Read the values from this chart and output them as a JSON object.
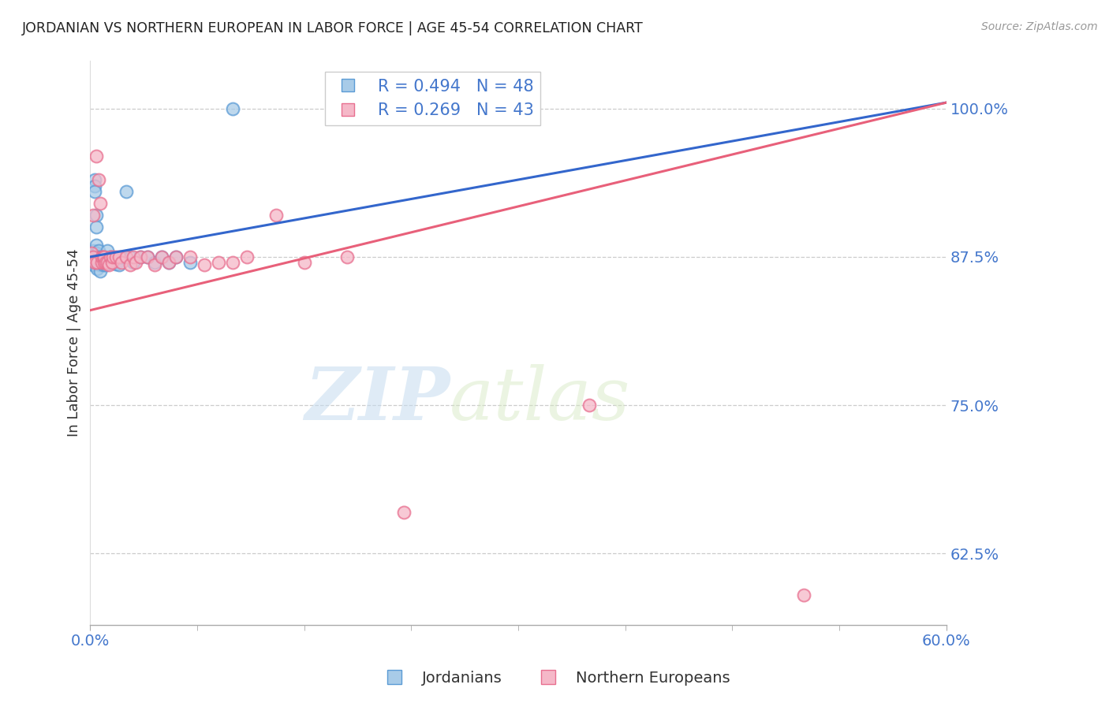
{
  "title": "JORDANIAN VS NORTHERN EUROPEAN IN LABOR FORCE | AGE 45-54 CORRELATION CHART",
  "source": "Source: ZipAtlas.com",
  "ylabel": "In Labor Force | Age 45-54",
  "xlim": [
    0.0,
    0.6
  ],
  "ylim": [
    0.565,
    1.04
  ],
  "yticks": [
    0.625,
    0.75,
    0.875,
    1.0
  ],
  "ytick_labels": [
    "62.5%",
    "75.0%",
    "87.5%",
    "100.0%"
  ],
  "xtick_left_label": "0.0%",
  "xtick_right_label": "60.0%",
  "blue_R": 0.494,
  "blue_N": 48,
  "pink_R": 0.269,
  "pink_N": 43,
  "blue_color": "#A8CBE8",
  "pink_color": "#F5B8C8",
  "blue_edge_color": "#5B9BD5",
  "pink_edge_color": "#E87090",
  "blue_line_color": "#3366CC",
  "pink_line_color": "#E8607A",
  "legend_label_blue": "Jordanians",
  "legend_label_pink": "Northern Europeans",
  "blue_scatter_x": [
    0.001,
    0.001,
    0.002,
    0.002,
    0.002,
    0.003,
    0.003,
    0.003,
    0.004,
    0.004,
    0.004,
    0.004,
    0.005,
    0.005,
    0.005,
    0.006,
    0.006,
    0.006,
    0.007,
    0.007,
    0.007,
    0.008,
    0.008,
    0.009,
    0.009,
    0.01,
    0.01,
    0.011,
    0.012,
    0.013,
    0.014,
    0.015,
    0.016,
    0.017,
    0.018,
    0.02,
    0.022,
    0.025,
    0.028,
    0.03,
    0.035,
    0.04,
    0.045,
    0.05,
    0.055,
    0.06,
    0.07,
    0.1
  ],
  "blue_scatter_y": [
    0.875,
    0.87,
    0.88,
    0.875,
    0.868,
    0.94,
    0.935,
    0.93,
    0.91,
    0.9,
    0.885,
    0.878,
    0.875,
    0.87,
    0.865,
    0.88,
    0.875,
    0.87,
    0.872,
    0.868,
    0.863,
    0.875,
    0.87,
    0.875,
    0.868,
    0.875,
    0.87,
    0.868,
    0.88,
    0.87,
    0.875,
    0.872,
    0.87,
    0.87,
    0.869,
    0.868,
    0.875,
    0.93,
    0.875,
    0.87,
    0.875,
    0.875,
    0.87,
    0.875,
    0.87,
    0.875,
    0.87,
    1.0
  ],
  "pink_scatter_x": [
    0.001,
    0.002,
    0.002,
    0.003,
    0.004,
    0.005,
    0.006,
    0.007,
    0.008,
    0.008,
    0.009,
    0.01,
    0.01,
    0.011,
    0.012,
    0.013,
    0.014,
    0.015,
    0.016,
    0.018,
    0.02,
    0.022,
    0.025,
    0.028,
    0.03,
    0.032,
    0.035,
    0.04,
    0.045,
    0.05,
    0.055,
    0.06,
    0.07,
    0.08,
    0.09,
    0.1,
    0.11,
    0.13,
    0.15,
    0.18,
    0.22,
    0.35,
    0.5
  ],
  "pink_scatter_y": [
    0.878,
    0.91,
    0.875,
    0.87,
    0.96,
    0.87,
    0.94,
    0.92,
    0.87,
    0.875,
    0.875,
    0.87,
    0.875,
    0.87,
    0.87,
    0.868,
    0.875,
    0.87,
    0.875,
    0.875,
    0.875,
    0.87,
    0.875,
    0.868,
    0.875,
    0.87,
    0.875,
    0.875,
    0.868,
    0.875,
    0.87,
    0.875,
    0.875,
    0.868,
    0.87,
    0.87,
    0.875,
    0.91,
    0.87,
    0.875,
    0.66,
    0.75,
    0.59
  ],
  "watermark_zip": "ZIP",
  "watermark_atlas": "atlas",
  "bg_color": "#FFFFFF",
  "grid_color": "#CCCCCC",
  "title_color": "#222222",
  "axis_label_color": "#333333",
  "tick_color": "#4477CC",
  "source_color": "#999999"
}
